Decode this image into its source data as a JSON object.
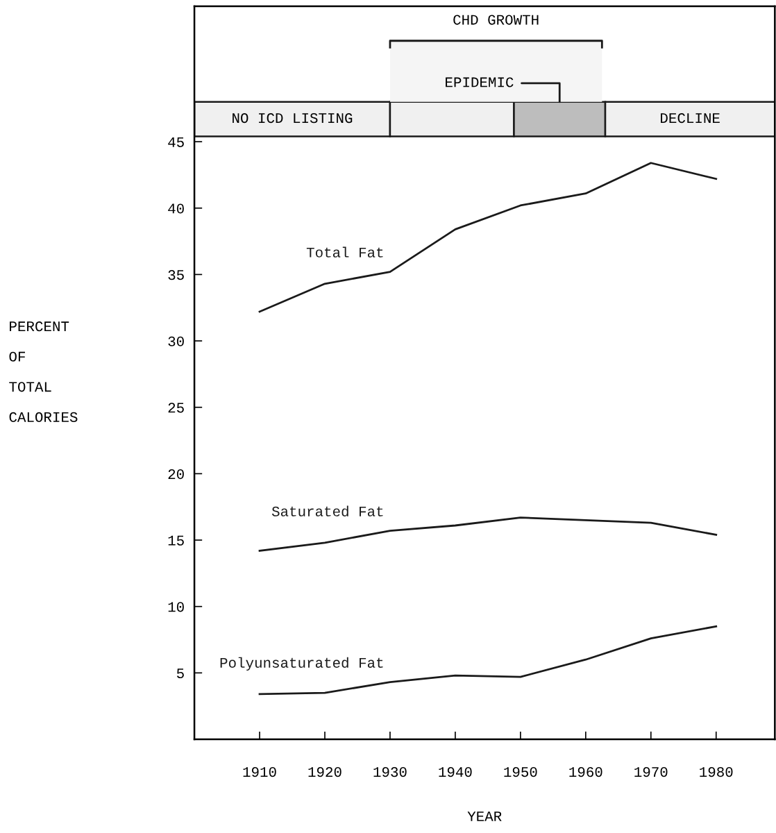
{
  "chart_data": {
    "type": "line",
    "xlabel": "YEAR",
    "ylabel": "PERCENT\nOF\nTOTAL\nCALORIES",
    "x": [
      1910,
      1920,
      1930,
      1940,
      1950,
      1960,
      1970,
      1980
    ],
    "series": [
      {
        "name": "Total Fat",
        "color": "#1a1a1a",
        "values": [
          32.2,
          34.3,
          35.2,
          38.4,
          40.2,
          41.1,
          43.4,
          42.2
        ]
      },
      {
        "name": "Saturated Fat",
        "color": "#1a1a1a",
        "values": [
          14.2,
          14.8,
          15.7,
          16.1,
          16.7,
          16.5,
          16.3,
          15.4
        ]
      },
      {
        "name": "Polyunsaturated Fat",
        "color": "#1a1a1a",
        "values": [
          3.4,
          3.5,
          4.3,
          4.8,
          4.7,
          6.0,
          7.6,
          8.5
        ]
      }
    ],
    "xlim": [
      1900,
      1989
    ],
    "ylim": [
      0,
      55.2
    ],
    "xticks": [
      1910,
      1920,
      1930,
      1940,
      1950,
      1960,
      1970,
      1980
    ],
    "yticks": [
      5,
      10,
      15,
      20,
      25,
      30,
      35,
      40,
      45
    ],
    "bands": [
      {
        "axis": "x",
        "from": 1900,
        "to": 1930,
        "label": "NO ICD LISTING",
        "color": "#f0f0f0"
      },
      {
        "axis": "x",
        "from": 1930,
        "to": 1949,
        "label": null,
        "color": "#f0f0f0"
      },
      {
        "axis": "x",
        "from": 1949,
        "to": 1963,
        "label": null,
        "color": "#bdbdbd"
      },
      {
        "axis": "x",
        "from": 1963,
        "to": 1989,
        "label": "DECLINE",
        "color": "#f0f0f0"
      },
      {
        "axis": "x",
        "from": 1930,
        "to": 1962.5,
        "label": "CHD GROWTH",
        "color": "#f5f5f5"
      }
    ],
    "annotations": [
      {
        "text": "EPIDEMIC",
        "x": 1956,
        "y": 47.8
      }
    ],
    "grid": false,
    "legend": false,
    "marker": "none",
    "line_style": "solid"
  }
}
